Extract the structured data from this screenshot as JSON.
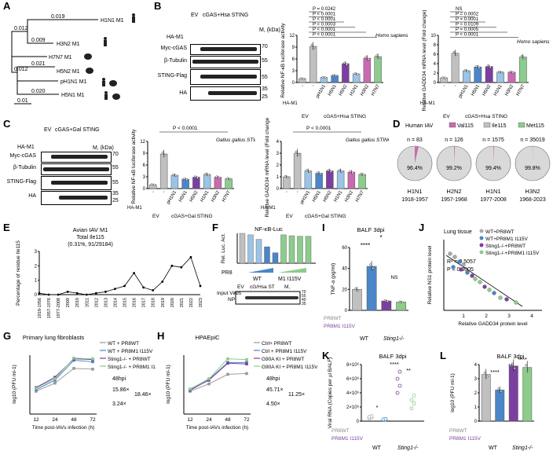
{
  "panels": {
    "A": {
      "letter": "A",
      "scale": "0.01",
      "nodes": [
        "0.019",
        "0.012",
        "0.009",
        "0.012",
        "0.021",
        "0.020"
      ],
      "leaves": [
        "H1N1 M1",
        "H3N2 M1",
        "H7N7 M1",
        "H5N2 M1",
        "pH1N1 M1",
        "H5N1 M1"
      ]
    },
    "B": {
      "letter": "B",
      "lanes": [
        "EV",
        "cGAS+Hsa STING"
      ],
      "ha": "HA-M1",
      "blot_labels": [
        "Myc-cGAS",
        "β-Tubulin",
        "STING-Flag",
        "HA"
      ],
      "kda": "M, (kDa)",
      "markers": [
        "70",
        "55",
        "55",
        "35",
        "25"
      ],
      "samples": [
        "-",
        "-",
        "pH1N1",
        "H5N1",
        "H5N2",
        "H1N1",
        "H3N2",
        "H7N7"
      ],
      "nfkb_ylabel": "Relative NF-κB luciferase activity",
      "nfkb_pvals": [
        "P = 0.0242",
        "P < 0.0001",
        "P < 0.0001",
        "P = 0.0003",
        "P < 0.0001",
        "P < 0.0001"
      ],
      "species": "Homo sapiens STING",
      "gadd_ylabel": "Relative GADD34 mRNA level (Fold change)",
      "gadd_pvals": [
        "NS",
        "P = 0.0002",
        "P = 0.0001",
        "P = 0.0109",
        "P = 0.0005",
        "P < 0.0001"
      ],
      "ev": "EV",
      "cgas": "cGAS+Hsa STING"
    },
    "C": {
      "letter": "C",
      "lanes": [
        "EV",
        "cGAS+Gal STING"
      ],
      "pval": "P < 0.0001",
      "species": "Gallus gallus STING",
      "cgas": "cGAS+Gal STING"
    },
    "D": {
      "letter": "D",
      "title": "Human IAV",
      "legend": [
        "Val115",
        "Ile115",
        "Met115"
      ],
      "pies": [
        {
          "n": "n = 83",
          "pct": "96.4%",
          "name": "H1N1",
          "years": "1918-1957",
          "frac": 0.964
        },
        {
          "n": "n = 126",
          "pct": "99.2%",
          "name": "H2N2",
          "years": "1957-1968",
          "frac": 0.992
        },
        {
          "n": "n = 1575",
          "pct": "99.4%",
          "name": "H1N1",
          "years": "1977-2008",
          "frac": 0.994
        },
        {
          "n": "n = 35019",
          "pct": "99.8%",
          "name": "H3N2",
          "years": "1968-2023",
          "frac": 0.998
        }
      ]
    },
    "E": {
      "letter": "E",
      "title": "Avian IAV M1",
      "subtitle": "Total Ile115",
      "subtitle2": "(0.31%, 91/29184)",
      "ylabel": "Percentage of residue Ile115"
    },
    "F": {
      "letter": "F",
      "title": "NF-κB-Luc",
      "ylabel": "Rel. Luc. Act.",
      "pr8": "PR8",
      "wt": "WT",
      "mut": "M1 I115V",
      "row": [
        "EV",
        "cG/Hsa ST",
        "M,"
      ],
      "input": "Input Virus",
      "np": "NP",
      "markers": [
        "70",
        "55",
        "40",
        "35"
      ]
    },
    "G": {
      "letter": "G",
      "title": "Primary lung fibroblasts",
      "legend": [
        "WT + PR8WT",
        "WT + PR8M1 I115V",
        "Sting1-/- + PR8WT",
        "Sting1-/- + PR8M1 I115V"
      ],
      "hpi": "48hpi",
      "fold": [
        "15.86×",
        "18.46×",
        "3.24×"
      ],
      "xlabel": "Time post-IAVs infection (h)",
      "ylabel": "log10 (PFU ml-1)",
      "x": [
        "12",
        "24",
        "48",
        "72"
      ]
    },
    "H": {
      "letter": "H",
      "title": "HPAEpiC",
      "legend": [
        "Ctrl+ PR8WT",
        "Ctrl + PR8M1 I115V",
        "G90A KI + PR8WT",
        "G90A KI + PR8M1 I115V"
      ],
      "hpi": "48hpi",
      "fold": [
        "45.71×",
        "11.25×",
        "4.50×"
      ],
      "xlabel": "Time post-IAVs infection (h)",
      "ylabel": "log10 (PFU ml-1)",
      "x": [
        "12",
        "24",
        "48",
        "72"
      ]
    },
    "I": {
      "letter": "I",
      "title": "BALF 3dpi",
      "ylabel": "TNF-α (pg/ml)",
      "stars": [
        "*",
        "****",
        "NS"
      ],
      "groups": [
        "WT",
        "Sting1-/-"
      ],
      "rows": [
        "PR8WT",
        "PR8M1 I115V"
      ]
    },
    "J": {
      "letter": "J",
      "title": "Lung tissue",
      "legend": [
        "WT+PR8WT",
        "WT+PR8M1 I115V",
        "Sting1-/-+PR8WT",
        "Sting1-/-+PR8M1 I115V"
      ],
      "r2": "R² = 0.5057",
      "p": "P = 0.0005",
      "xlabel": "Relative GADD34 protein level",
      "ylabel": "Relative NS1 protein level",
      "x": [
        "1",
        "2",
        "3",
        "4"
      ]
    },
    "K": {
      "letter": "K",
      "title": "BALF 3dpi",
      "ylabel": "Viral RNA (Copies per µl BALF)",
      "stars": [
        "****",
        "**",
        "*"
      ],
      "groups": [
        "WT",
        "Sting1-/-"
      ],
      "rows": [
        "PR8WT",
        "PR8M1 I115V"
      ],
      "y": [
        "0",
        "2×10⁶",
        "4×10⁶",
        "6×10⁶",
        "8×10⁶"
      ]
    },
    "L": {
      "letter": "L",
      "title": "BALF 3dpi",
      "ylabel": "log10 (PFU ml-1)",
      "stars": [
        "****",
        "**",
        "****"
      ],
      "groups": [
        "WT",
        "Sting1-/-"
      ],
      "rows": [
        "PR8WT",
        "PR8M1 I115V"
      ],
      "y": [
        "0",
        "1",
        "2",
        "3",
        "4"
      ]
    }
  },
  "chart_data": [
    {
      "type": "bar",
      "panel": "B-NF-κB",
      "categories": [
        "EV-",
        "cGAS-",
        "pH1N1",
        "H5N1",
        "H5N2",
        "H1N1",
        "H3N2",
        "H7N7"
      ],
      "values": [
        1,
        9.2,
        1.3,
        1.8,
        4.8,
        2.2,
        6.2,
        6.6
      ],
      "ylim": [
        0,
        12
      ]
    },
    {
      "type": "bar",
      "panel": "B-GADD34",
      "categories": [
        "EV-",
        "cGAS-",
        "pH1N1",
        "H5N1",
        "H5N2",
        "H1N1",
        "H3N2",
        "H7N7"
      ],
      "values": [
        1,
        6.2,
        2.5,
        3.3,
        3.4,
        2.2,
        2.2,
        5.4
      ],
      "ylim": [
        0,
        10
      ]
    },
    {
      "type": "bar",
      "panel": "C-NF-κB",
      "categories": [
        "EV-",
        "cGAS-",
        "pH1N1",
        "H5N1",
        "H5N2",
        "H1N1",
        "H3N2",
        "H7N7"
      ],
      "values": [
        1,
        8.8,
        3.4,
        2.4,
        2.9,
        3.6,
        2.9,
        2.5
      ],
      "ylim": [
        0,
        12
      ]
    },
    {
      "type": "bar",
      "panel": "C-GADD34",
      "categories": [
        "EV-",
        "cGAS-",
        "pH1N1",
        "H5N1",
        "H5N2",
        "H1N1",
        "H3N2",
        "H7N7"
      ],
      "values": [
        1,
        3.0,
        1.5,
        1.3,
        1.5,
        1.5,
        1.4,
        1.2
      ],
      "ylim": [
        0,
        4
      ]
    },
    {
      "type": "line",
      "panel": "E",
      "x": [
        "1918-1956",
        "1957-1976",
        "1977-2008",
        "2009",
        "2010",
        "2011",
        "2012",
        "2013",
        "2014",
        "2015",
        "2016",
        "2017",
        "2018",
        "2019",
        "2020",
        "2021",
        "2022",
        "2023"
      ],
      "values": [
        0.1,
        0.0,
        0.0,
        0.2,
        0.1,
        0.0,
        0.1,
        0.2,
        0.4,
        0.6,
        1.5,
        0.5,
        0.3,
        0.9,
        2.0,
        1.9,
        2.6,
        0.6
      ],
      "ylim": [
        0,
        3
      ]
    },
    {
      "type": "line",
      "panel": "G",
      "x": [
        12,
        24,
        48,
        72
      ],
      "series": [
        {
          "name": "WT + PR8WT",
          "values": [
            3.1,
            4.2,
            6.2,
            6.1
          ]
        },
        {
          "name": "WT + PR8M1 I115V",
          "values": [
            3.3,
            4.6,
            7.3,
            7.1
          ]
        },
        {
          "name": "Sting1-/- + PR8WT",
          "values": [
            3.6,
            5.0,
            7.5,
            7.4
          ]
        },
        {
          "name": "Sting1-/- + PR8M1 I115V",
          "values": [
            3.5,
            4.8,
            7.6,
            7.5
          ]
        }
      ],
      "ylim": [
        0,
        8
      ]
    },
    {
      "type": "line",
      "panel": "H",
      "x": [
        12,
        24,
        48,
        72
      ],
      "series": [
        {
          "name": "Ctrl+ PR8WT",
          "values": [
            3.1,
            4.1,
            5.4,
            5.5
          ]
        },
        {
          "name": "Ctrl + PR8M1 I115V",
          "values": [
            3.2,
            4.7,
            7.0,
            7.0
          ]
        },
        {
          "name": "G90A KI + PR8WT",
          "values": [
            3.3,
            4.6,
            6.9,
            6.8
          ]
        },
        {
          "name": "G90A KI + PR8M1 I115V",
          "values": [
            3.4,
            4.8,
            7.5,
            7.4
          ]
        }
      ],
      "ylim": [
        0,
        8
      ]
    },
    {
      "type": "bar",
      "panel": "I",
      "categories": [
        "WT PR8WT",
        "WT PR8M1 I115V",
        "Sting1-/- PR8WT",
        "Sting1-/- PR8M1 I115V"
      ],
      "values": [
        20,
        42,
        9,
        8
      ],
      "ylim": [
        0,
        60
      ]
    },
    {
      "type": "bar",
      "panel": "L",
      "categories": [
        "WT PR8WT",
        "WT PR8M1 I115V",
        "Sting1-/- PR8WT",
        "Sting1-/- PR8M1 I115V"
      ],
      "values": [
        3.3,
        2.2,
        3.9,
        3.8
      ],
      "ylim": [
        0,
        4
      ]
    }
  ]
}
